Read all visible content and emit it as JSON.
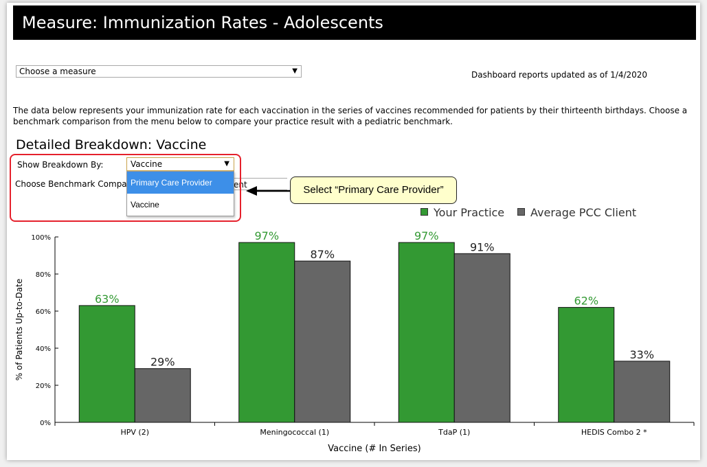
{
  "header": {
    "title": "Measure: Immunization Rates - Adolescents"
  },
  "measure_select": {
    "value": "Choose a measure",
    "arrow": "▼"
  },
  "updated_text": "Dashboard reports updated as of 1/4/2020",
  "description": "The data below represents your immunization rate for each vaccination in the series of vaccines recommended for patients by their thirteenth birthdays. Choose a benchmark comparison from the menu below to compare your practice result with a pediatric benchmark.",
  "section_title": "Detailed Breakdown: Vaccine",
  "breakdown": {
    "label": "Show Breakdown By:",
    "value": "Vaccine",
    "arrow": "▼",
    "options": [
      "Primary Care Provider",
      "Vaccine"
    ],
    "highlighted_option": "Primary Care Provider"
  },
  "benchmark": {
    "label": "Choose Benchmark Comparison:",
    "visible_value_fragment": "ent"
  },
  "callout": {
    "text": "Select “Primary Care Provider”"
  },
  "colors": {
    "your_practice": "#339933",
    "average_client": "#666666",
    "highlight_border": "#e5202b",
    "callout_bg": "#ffffcc",
    "dropdown_highlight": "#3d8fe8"
  },
  "chart_data": {
    "type": "bar",
    "categories": [
      "HPV (2)",
      "Meningococcal (1)",
      "TdaP (1)",
      "HEDIS Combo 2 *"
    ],
    "series": [
      {
        "name": "Your Practice",
        "values": [
          63,
          97,
          97,
          62
        ],
        "labels": [
          "63%",
          "97%",
          "97%",
          "62%"
        ],
        "color": "#339933"
      },
      {
        "name": "Average PCC Client",
        "values": [
          29,
          87,
          91,
          33
        ],
        "labels": [
          "29%",
          "87%",
          "91%",
          "33%"
        ],
        "color": "#666666"
      }
    ],
    "xlabel": "Vaccine (# In Series)",
    "ylabel": "% of Patients Up-to-Date",
    "ylim": [
      0,
      100
    ],
    "yticks": [
      0,
      20,
      40,
      60,
      80,
      100
    ],
    "ytick_labels": [
      "0%",
      "20%",
      "40%",
      "60%",
      "80%",
      "100%"
    ],
    "grid": false,
    "legend": "top-right"
  }
}
